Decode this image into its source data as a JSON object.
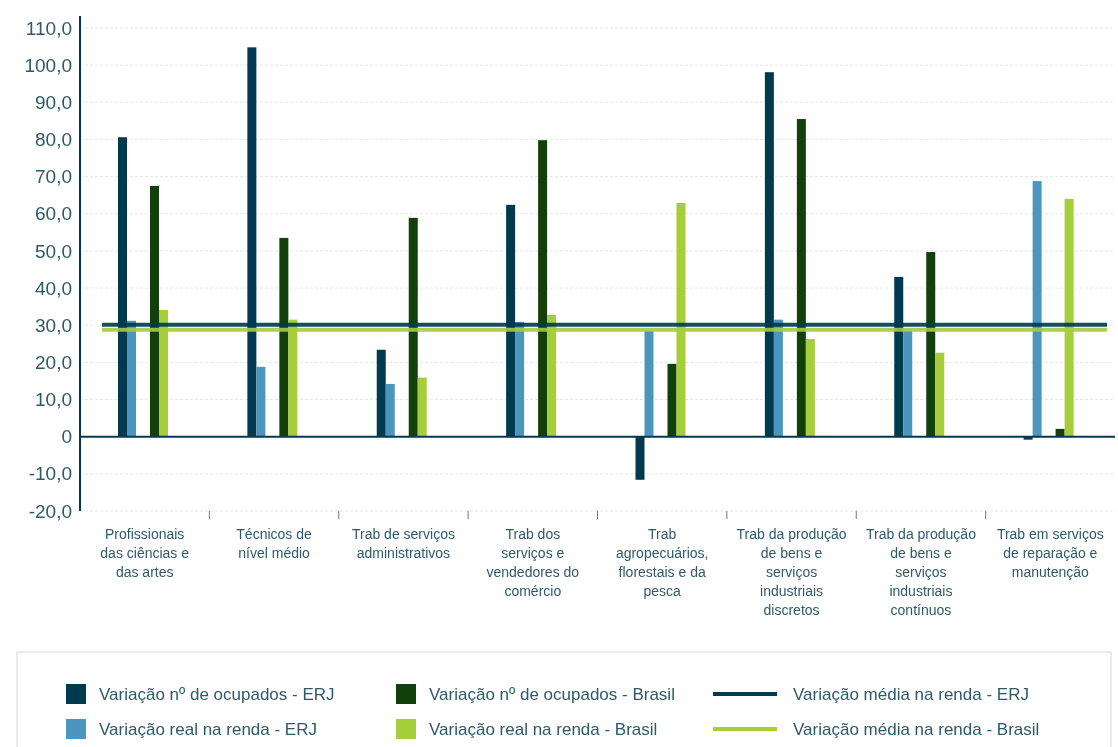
{
  "chart_data": {
    "type": "bar",
    "categories": [
      "Profissionais das ciências e das artes",
      "Técnicos de nível médio",
      "Trab de serviços administrativos",
      "Trab dos serviços e vendedores do comércio",
      "Trab agropecuários, florestais e da pesca",
      "Trab da produção de bens e serviços industriais discretos",
      "Trab da produção de bens e serviços industriais contínuos",
      "Trab em serviços de reparação e manutenção"
    ],
    "series": [
      {
        "name": "Variação nº de ocupados - ERJ",
        "color": "#003a4f",
        "values": [
          80.6,
          104.8,
          23.4,
          62.4,
          -11.6,
          98.1,
          43.0,
          -0.8
        ]
      },
      {
        "name": "Variação real na renda - ERJ",
        "color": "#4a96bd",
        "values": [
          31.2,
          18.8,
          14.2,
          30.9,
          28.5,
          31.5,
          28.5,
          68.8
        ]
      },
      {
        "name": "Variação nº de ocupados - Brasil",
        "color": "#12400a",
        "values": [
          67.5,
          53.5,
          58.9,
          79.8,
          19.6,
          85.5,
          49.7,
          2.1
        ]
      },
      {
        "name": "Variação real na renda - Brasil",
        "color": "#a6cd3a",
        "values": [
          34.1,
          31.5,
          15.9,
          32.8,
          62.9,
          26.3,
          22.6,
          64.0
        ]
      }
    ],
    "ref_lines": [
      {
        "axis": "y",
        "value": 30.1,
        "label": "Variação média na renda - ERJ",
        "color": "#003a4f"
      },
      {
        "axis": "y",
        "value": 28.8,
        "label": "Variação média na renda - Brasil",
        "color": "#a6cd3a"
      }
    ],
    "ylim": [
      -20,
      110
    ],
    "yticks": [
      {
        "value": -20,
        "label": "-20,0"
      },
      {
        "value": -10,
        "label": "-10,0"
      },
      0,
      {
        "value": 10,
        "label": "10,0"
      },
      {
        "value": 20,
        "label": "20,0"
      },
      {
        "value": 30,
        "label": "30,0"
      },
      {
        "value": 40,
        "label": "40,0"
      },
      {
        "value": 50,
        "label": "50,0"
      },
      {
        "value": 60,
        "label": "60,0"
      },
      {
        "value": 70,
        "label": "70,0"
      },
      {
        "value": 80,
        "label": "80,0"
      },
      {
        "value": 90,
        "label": "90,0"
      },
      {
        "value": 100,
        "label": "100,0"
      },
      {
        "value": 110,
        "label": "110,0"
      }
    ],
    "grid": "y",
    "legend": "bottom"
  }
}
